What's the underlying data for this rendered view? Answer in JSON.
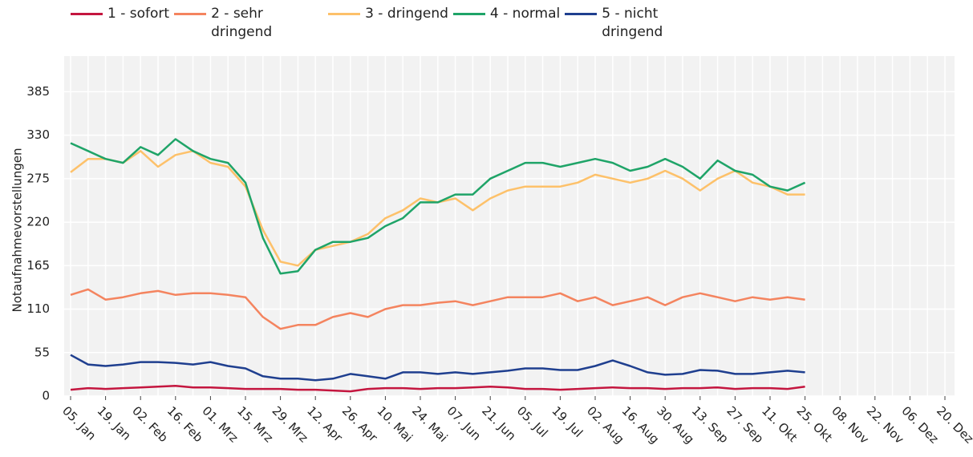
{
  "chart_data": {
    "type": "line",
    "y_label": "Notaufnahmevorstellungen",
    "x": [
      "05. Jan",
      null,
      "19. Jan",
      null,
      "02. Feb",
      null,
      "16. Feb",
      null,
      "01. Mrz",
      null,
      "15. Mrz",
      null,
      "29. Mrz",
      null,
      "12. Apr",
      null,
      "26. Apr",
      null,
      "10. Mai",
      null,
      "24. Mai",
      null,
      "07. Jun",
      null,
      "21. Jun",
      null,
      "05. Jul",
      null,
      "19. Jul",
      null,
      "02. Aug",
      null,
      "16. Aug",
      null,
      "30. Aug",
      null,
      "13. Sep",
      null,
      "27. Sep",
      null,
      "11. Okt",
      null,
      "25. Okt",
      null,
      "08. Nov",
      null,
      "22. Nov",
      null,
      "06. Dez",
      null,
      "20. Dez"
    ],
    "ylim": [
      0,
      430
    ],
    "yticks": [
      0,
      55,
      110,
      165,
      220,
      275,
      330,
      385
    ],
    "grid": true,
    "series": [
      {
        "name": "1 - sofort",
        "color": "#c4163f",
        "values": [
          8,
          10,
          9,
          10,
          11,
          12,
          13,
          11,
          11,
          10,
          9,
          9,
          9,
          8,
          8,
          7,
          6,
          9,
          10,
          10,
          9,
          10,
          10,
          11,
          12,
          11,
          9,
          9,
          8,
          9,
          10,
          11,
          10,
          10,
          9,
          10,
          10,
          11,
          9,
          10,
          10,
          9,
          12,
          null,
          null,
          null,
          null,
          null,
          null,
          null,
          null
        ]
      },
      {
        "name": "2 - sehr dringend",
        "color": "#f4845f",
        "values": [
          128,
          135,
          122,
          125,
          130,
          133,
          128,
          130,
          130,
          128,
          125,
          100,
          85,
          90,
          90,
          100,
          105,
          100,
          110,
          115,
          115,
          118,
          120,
          115,
          120,
          125,
          125,
          125,
          130,
          120,
          125,
          115,
          120,
          125,
          115,
          125,
          130,
          125,
          120,
          125,
          122,
          125,
          122,
          null,
          null,
          null,
          null,
          null,
          null,
          null,
          null
        ]
      },
      {
        "name": "3 - dringend",
        "color": "#fdc16a",
        "values": [
          283,
          300,
          300,
          295,
          310,
          290,
          305,
          310,
          295,
          290,
          265,
          210,
          170,
          165,
          185,
          190,
          195,
          205,
          225,
          235,
          250,
          245,
          250,
          235,
          250,
          260,
          265,
          265,
          265,
          270,
          280,
          275,
          270,
          275,
          285,
          275,
          260,
          275,
          285,
          270,
          265,
          255,
          255,
          null,
          null,
          null,
          null,
          null,
          null,
          null,
          null
        ]
      },
      {
        "name": "4 - normal",
        "color": "#1fa468",
        "values": [
          320,
          310,
          300,
          295,
          315,
          305,
          325,
          310,
          300,
          295,
          270,
          200,
          155,
          158,
          185,
          195,
          195,
          200,
          215,
          225,
          245,
          245,
          255,
          255,
          275,
          285,
          295,
          295,
          290,
          295,
          300,
          295,
          285,
          290,
          300,
          290,
          275,
          298,
          285,
          280,
          265,
          260,
          270,
          null,
          null,
          null,
          null,
          null,
          null,
          null,
          null
        ]
      },
      {
        "name": "5 - nicht dringend",
        "color": "#1f3f8f",
        "values": [
          52,
          40,
          38,
          40,
          43,
          43,
          42,
          40,
          43,
          38,
          35,
          25,
          22,
          22,
          20,
          22,
          28,
          25,
          22,
          30,
          30,
          28,
          30,
          28,
          30,
          32,
          35,
          35,
          33,
          33,
          38,
          45,
          38,
          30,
          27,
          28,
          33,
          32,
          28,
          28,
          30,
          32,
          30,
          null,
          null,
          null,
          null,
          null,
          null,
          null,
          null
        ]
      }
    ]
  }
}
